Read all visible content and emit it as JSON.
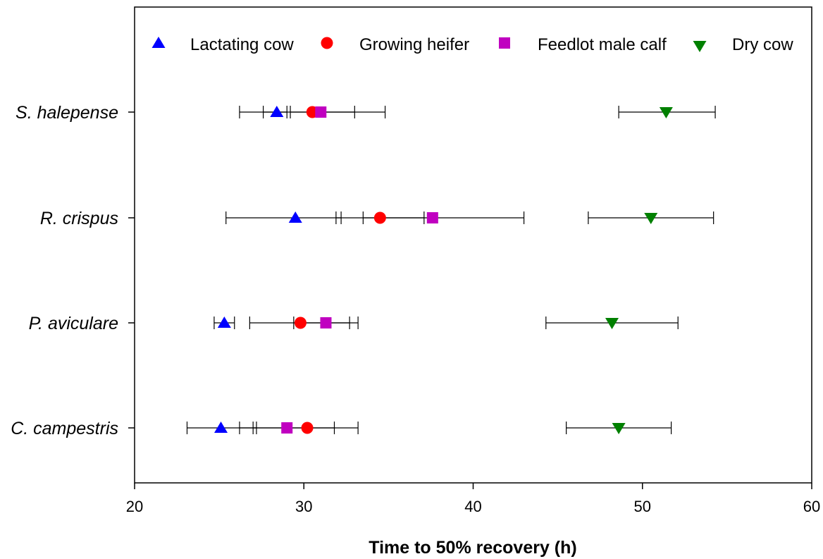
{
  "chart_data": {
    "type": "scatter",
    "title": "",
    "xlabel": "Time to 50% recovery (h)",
    "ylabel": "",
    "xlim": [
      20,
      60
    ],
    "xticks": [
      20,
      30,
      40,
      50,
      60
    ],
    "xtick_labels": [
      "20",
      "30",
      "40",
      "50",
      "60"
    ],
    "grid": false,
    "legend_position": "top",
    "categories": [
      "S. halepense",
      "R. crispus",
      "P. aviculare",
      "C. campestris"
    ],
    "series": [
      {
        "name": "Lactating cow",
        "color": "#0000ff",
        "marker": "triangle-up",
        "values": [
          28.4,
          29.5,
          25.3,
          25.1
        ],
        "lower": [
          26.2,
          25.4,
          24.7,
          23.1
        ],
        "upper": [
          29.0,
          32.2,
          25.9,
          27.2
        ]
      },
      {
        "name": "Growing heifer",
        "color": "#ff0000",
        "marker": "circle",
        "values": [
          30.5,
          34.5,
          29.8,
          30.2
        ],
        "lower": [
          27.6,
          31.9,
          26.8,
          27.0
        ],
        "upper": [
          33.0,
          37.1,
          32.7,
          33.2
        ]
      },
      {
        "name": "Feedlot male calf",
        "color": "#c000c0",
        "marker": "square",
        "values": [
          31.0,
          37.6,
          31.3,
          29.0
        ],
        "lower": [
          29.2,
          33.5,
          29.4,
          26.2
        ],
        "upper": [
          34.8,
          43.0,
          33.2,
          31.8
        ]
      },
      {
        "name": "Dry cow",
        "color": "#008000",
        "marker": "triangle-down",
        "values": [
          51.4,
          50.5,
          48.2,
          48.6
        ],
        "lower": [
          48.6,
          46.8,
          44.3,
          45.5
        ],
        "upper": [
          54.3,
          54.2,
          52.1,
          51.7
        ]
      }
    ]
  }
}
